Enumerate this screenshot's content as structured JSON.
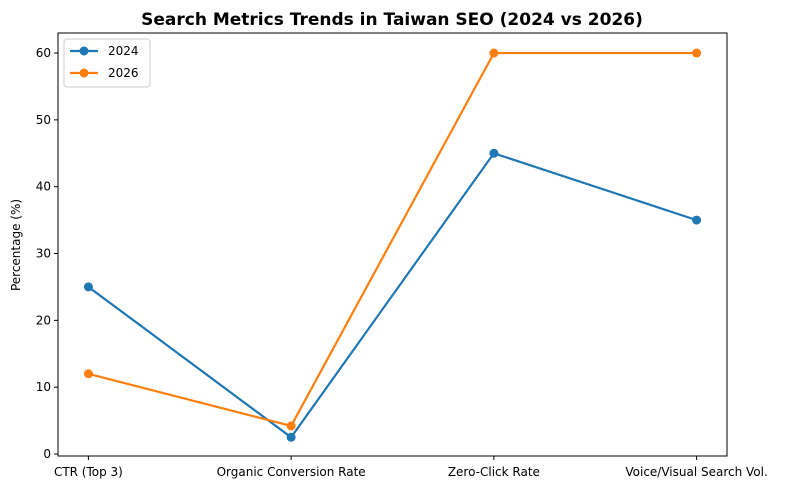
{
  "chart_data": {
    "type": "line",
    "title": "Search Metrics Trends in Taiwan SEO (2024 vs 2026)",
    "xlabel": "",
    "ylabel": "Percentage (%)",
    "categories": [
      "CTR (Top 3)",
      "Organic Conversion Rate",
      "Zero-Click Rate",
      "Voice/Visual Search Vol."
    ],
    "series": [
      {
        "name": "2024",
        "values": [
          25,
          2.5,
          45,
          35
        ],
        "color": "#1f77b4"
      },
      {
        "name": "2026",
        "values": [
          12,
          4.2,
          60,
          60
        ],
        "color": "#ff7f0e"
      }
    ],
    "ylim": [
      -0.3,
      63
    ],
    "yticks": [
      0,
      10,
      20,
      30,
      40,
      50,
      60
    ],
    "grid": false,
    "legend": "top-left"
  }
}
